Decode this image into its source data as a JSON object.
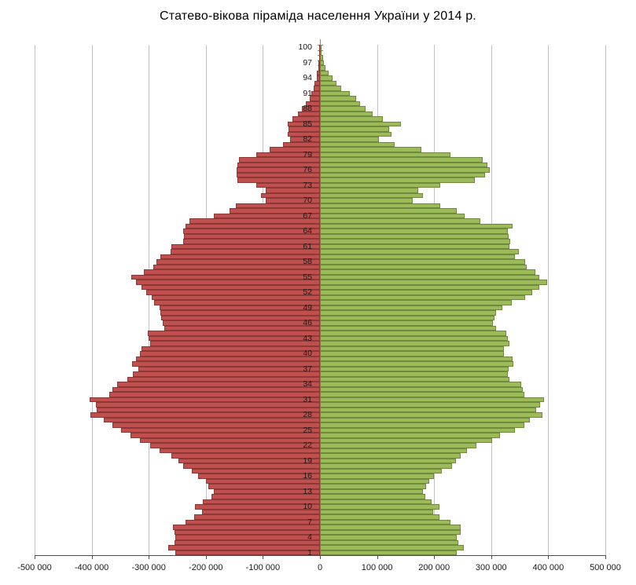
{
  "title": "Статево-вікова піраміда населення України у 2014 р.",
  "chart_data": {
    "type": "bar",
    "subtype": "population-pyramid",
    "title": "Статево-вікова піраміда населення України у 2014 р.",
    "xlabel": "",
    "ylabel": "",
    "xlim": [
      -500000,
      500000
    ],
    "grid": "vertical",
    "legend": "none",
    "note": "Left (male) series plotted as negative values; ages run 1 (bottom) to 100 (top), one bar per year of age",
    "x_ticks": [
      {
        "value": -500000,
        "label": "-500 000"
      },
      {
        "value": -400000,
        "label": "-400 000"
      },
      {
        "value": -300000,
        "label": "-300 000"
      },
      {
        "value": -200000,
        "label": "-200 000"
      },
      {
        "value": -100000,
        "label": "-100 000"
      },
      {
        "value": 0,
        "label": "0"
      },
      {
        "value": 100000,
        "label": "100 000"
      },
      {
        "value": 200000,
        "label": "200 000"
      },
      {
        "value": 300000,
        "label": "300 000"
      },
      {
        "value": 400000,
        "label": "400 000"
      },
      {
        "value": 500000,
        "label": "500 000"
      }
    ],
    "age_min": 1,
    "age_max": 100,
    "age_tick_labels": [
      "100",
      "97",
      "94",
      "91",
      "88",
      "85",
      "82",
      "79",
      "76",
      "73",
      "70",
      "67",
      "64",
      "61",
      "58",
      "55",
      "52",
      "49",
      "46",
      "43",
      "40",
      "37",
      "34",
      "31",
      "28",
      "25",
      "22",
      "19",
      "16",
      "13",
      "10",
      "7",
      "4",
      "1"
    ],
    "series": [
      {
        "id": "male",
        "side": "left",
        "color": "#c0504d",
        "border_color": "#8c3836",
        "values_by_age_1_to_100": [
          -254000,
          -266000,
          -255000,
          -253000,
          -255000,
          -258000,
          -236000,
          -220000,
          -207000,
          -219000,
          -205000,
          -190000,
          -186000,
          -196000,
          -200000,
          -213000,
          -225000,
          -240000,
          -248000,
          -260000,
          -281000,
          -297000,
          -316000,
          -332000,
          -348000,
          -363000,
          -379000,
          -402000,
          -391000,
          -393000,
          -403000,
          -369000,
          -364000,
          -356000,
          -338000,
          -328000,
          -318000,
          -329000,
          -323000,
          -316000,
          -313000,
          -297000,
          -300000,
          -302000,
          -273000,
          -276000,
          -278000,
          -279000,
          -281000,
          -290000,
          -295000,
          -304000,
          -313000,
          -322000,
          -330000,
          -308000,
          -292000,
          -286000,
          -280000,
          -262000,
          -260000,
          -240000,
          -238000,
          -239000,
          -235000,
          -229000,
          -186000,
          -158000,
          -148000,
          -95000,
          -103000,
          -95000,
          -112000,
          -144000,
          -146000,
          -146000,
          -144000,
          -142000,
          -111000,
          -88000,
          -65000,
          -53000,
          -56000,
          -55000,
          -57000,
          -48000,
          -38000,
          -32000,
          -25000,
          -18000,
          -15000,
          -11000,
          -9000,
          -6000,
          -5000,
          -3000,
          -2500,
          -2000,
          -1500,
          -1000
        ]
      },
      {
        "id": "female",
        "side": "right",
        "color": "#9bbb59",
        "border_color": "#71893f",
        "values_by_age_1_to_100": [
          239000,
          252000,
          242000,
          240000,
          246000,
          246000,
          229000,
          210000,
          198000,
          210000,
          196000,
          184000,
          180000,
          186000,
          191000,
          200000,
          214000,
          231000,
          238000,
          246000,
          257000,
          274000,
          301000,
          316000,
          341000,
          358000,
          368000,
          390000,
          379000,
          386000,
          393000,
          358000,
          355000,
          352000,
          332000,
          329000,
          330000,
          339000,
          338000,
          322000,
          323000,
          332000,
          329000,
          327000,
          309000,
          303000,
          306000,
          309000,
          320000,
          336000,
          360000,
          372000,
          384000,
          398000,
          384000,
          378000,
          362000,
          359000,
          342000,
          348000,
          332000,
          334000,
          330000,
          329000,
          337000,
          281000,
          253000,
          239000,
          211000,
          162000,
          181000,
          172000,
          211000,
          272000,
          289000,
          298000,
          293000,
          285000,
          229000,
          177000,
          131000,
          103000,
          125000,
          121000,
          142000,
          110000,
          92000,
          80000,
          70000,
          63000,
          52000,
          37000,
          29000,
          22000,
          15000,
          10000,
          7000,
          5000,
          3000,
          2000
        ]
      }
    ]
  },
  "colors": {
    "background": "#ffffff",
    "gridline": "#c3c3c3",
    "value_axis": "#4d4d4d",
    "category_axis": "#8a8a8a",
    "male_fill": "#c0504d",
    "male_border": "#8c3836",
    "female_fill": "#9bbb59",
    "female_border": "#71893f",
    "text": "#1a1a1a"
  }
}
